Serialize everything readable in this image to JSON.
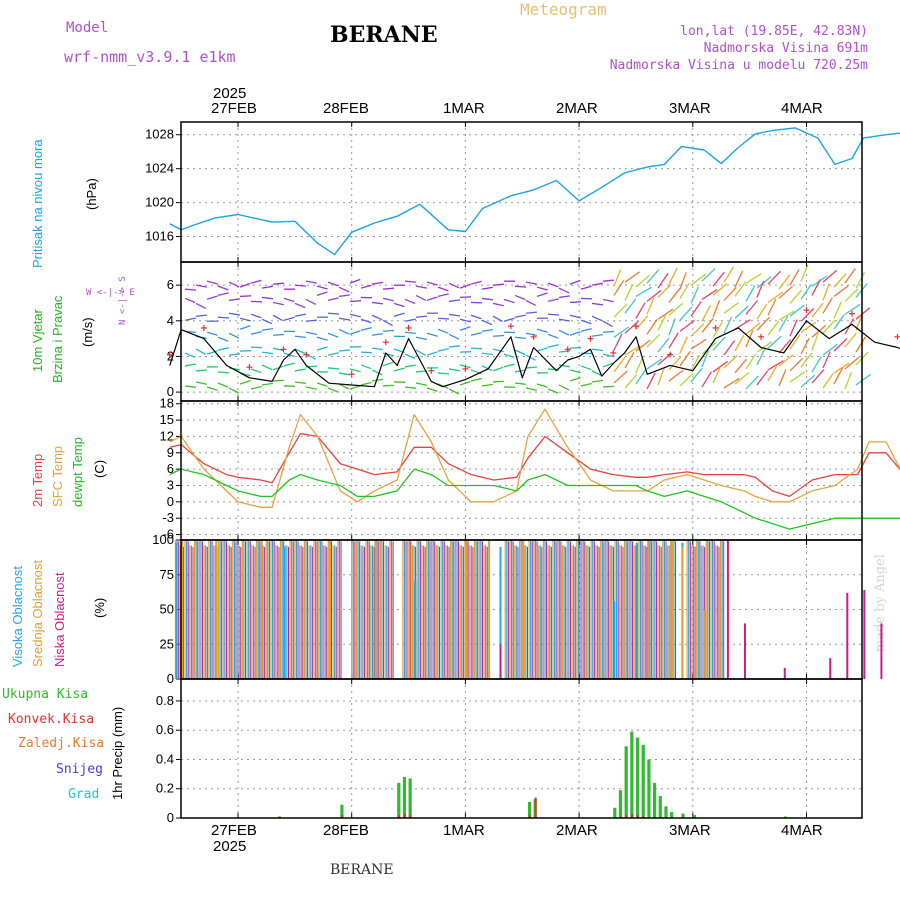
{
  "header": {
    "model_label": "Model",
    "model_name": "wrf-nmm_v3.9.1 e1km",
    "station": "BERANE",
    "title": "Meteogram",
    "coords": "lon,lat (19.85E, 42.83N)",
    "elevation": "Nadmorska Visina 691m",
    "model_elevation": "Nadmorska Visina u modelu 720.25m",
    "watermark": "made by Angel",
    "footer_station": "BERANE"
  },
  "colors": {
    "pressure": "#1aa3e8",
    "temp2m": "#e8413c",
    "sfc_temp": "#e6a33e",
    "dewpt": "#1fc41f",
    "wind_speed": "#000000",
    "cloud_high": "#22a7e6",
    "cloud_mid": "#e0a030",
    "cloud_low": "#c81c8c",
    "precip_total": "#33b833",
    "precip_conv": "#e83030",
    "precip_frz": "#f07830",
    "snow": "#4040e0",
    "hail": "#20c8c8"
  },
  "top_axis": {
    "year": "2025",
    "dates": [
      "27FEB",
      "28FEB",
      "1MAR",
      "2MAR",
      "3MAR",
      "4MAR"
    ]
  },
  "bottom_axis": {
    "year": "2025",
    "dates": [
      "27FEB",
      "28FEB",
      "1MAR",
      "2MAR",
      "3MAR",
      "4MAR"
    ]
  },
  "panels": {
    "pressure": {
      "ylabel": "Pritisak na nivou mora",
      "unit": "(hPa)"
    },
    "wind": {
      "ylabel1": "10m Vjetar",
      "ylabel2": "Brzina i Pravac",
      "unit": "(m/s)",
      "compass": "W <-|-> E",
      "compass_v": "N <-|-> S"
    },
    "temp": {
      "label1": "2m Temp",
      "label2": "SFC Temp",
      "label3": "dewpt Temp",
      "unit": "(C)"
    },
    "cloud": {
      "label1": "Visoka Oblacnost",
      "label2": "Srednja Oblacnost",
      "label3": "Niska Oblacnost",
      "unit": "(%)"
    },
    "precip": {
      "legend": [
        "Ukupna Kisa",
        "Konvek.Kisa",
        "Zaledj.Kisa",
        "Snijeg",
        "Grad"
      ],
      "ylabel": "1hr Precip (mm)"
    }
  },
  "chart_data": [
    {
      "type": "line",
      "name": "pressure",
      "x": [
        -0.6,
        -0.5,
        -0.4,
        -0.2,
        0,
        0.2,
        0.3,
        0.5,
        0.7,
        0.85,
        1,
        1.2,
        1.4,
        1.6,
        1.85,
        2,
        2.15,
        2.4,
        2.6,
        2.8,
        3,
        3.2,
        3.4,
        3.6,
        3.75,
        3.9,
        4.1,
        4.25,
        4.4,
        4.55,
        4.7,
        4.9,
        5.1,
        5.25,
        5.4,
        5.5,
        5.7,
        5.9,
        6.1,
        6.3,
        6.4
      ],
      "y": [
        1017.5,
        1016.8,
        1017.3,
        1018.2,
        1018.6,
        1018.0,
        1017.7,
        1017.8,
        1015.2,
        1013.9,
        1016.5,
        1017.6,
        1018.4,
        1019.8,
        1016.8,
        1016.6,
        1019.3,
        1020.8,
        1021.5,
        1022.6,
        1020.2,
        1021.8,
        1023.5,
        1024.2,
        1024.5,
        1026.6,
        1026.2,
        1024.6,
        1026.5,
        1028.1,
        1028.5,
        1028.8,
        1027.6,
        1024.5,
        1025.2,
        1027.6,
        1028.0,
        1028.3,
        1027.9,
        1028.0,
        1024.6
      ],
      "ylim": [
        1013,
        1029.5
      ],
      "yticks": [
        1016,
        1020,
        1024,
        1028
      ]
    },
    {
      "type": "line",
      "name": "wind_speed",
      "x": [
        -0.6,
        -0.5,
        -0.3,
        -0.1,
        0.1,
        0.3,
        0.4,
        0.5,
        0.6,
        0.8,
        1,
        1.2,
        1.3,
        1.4,
        1.5,
        1.6,
        1.7,
        1.8,
        2,
        2.2,
        2.4,
        2.5,
        2.6,
        2.8,
        2.9,
        3,
        3.1,
        3.2,
        3.3,
        3.4,
        3.5,
        3.6,
        3.8,
        4,
        4.2,
        4.4,
        4.6,
        4.8,
        5,
        5.2,
        5.4,
        5.6,
        5.8,
        6,
        6.2,
        6.4
      ],
      "y": [
        1.5,
        3.5,
        3.0,
        1.5,
        0.8,
        0.6,
        1.8,
        2.4,
        1.5,
        0.5,
        0.4,
        0.3,
        2.2,
        1.5,
        3.0,
        1.8,
        0.6,
        0.3,
        0.7,
        1.3,
        3.1,
        0.8,
        2.5,
        1.2,
        1.8,
        2.0,
        2.4,
        0.9,
        1.6,
        2.2,
        3.1,
        1.0,
        1.5,
        1.2,
        3.0,
        3.6,
        2.5,
        2.2,
        4.0,
        3.0,
        3.8,
        2.8,
        2.5,
        2.0,
        2.3,
        3.8
      ],
      "ylim": [
        -0.5,
        7.3
      ],
      "yticks": [
        0,
        2,
        4,
        6
      ]
    },
    {
      "type": "line",
      "name": "temperature",
      "x": [
        -0.6,
        -0.5,
        -0.3,
        -0.1,
        0,
        0.2,
        0.3,
        0.45,
        0.55,
        0.7,
        0.9,
        1.05,
        1.2,
        1.4,
        1.55,
        1.7,
        1.85,
        2.05,
        2.25,
        2.45,
        2.55,
        2.7,
        2.9,
        3.1,
        3.3,
        3.5,
        3.6,
        3.75,
        3.95,
        4.1,
        4.25,
        4.45,
        4.55,
        4.7,
        4.85,
        5.05,
        5.25,
        5.45,
        5.55,
        5.7,
        5.9,
        6.1,
        6.25,
        6.4
      ],
      "series": [
        {
          "name": "2m Temp",
          "values": [
            10,
            10.5,
            7,
            5,
            4.5,
            4,
            3.5,
            9,
            12.5,
            12,
            7,
            6,
            5,
            5.5,
            10,
            10,
            7,
            5,
            4,
            4.5,
            8,
            12,
            9,
            6,
            5,
            4.5,
            4.5,
            5,
            5.5,
            5,
            5,
            5,
            4.5,
            2,
            1,
            4,
            5,
            5,
            9,
            9,
            4,
            1,
            0,
            4
          ]
        },
        {
          "name": "SFC Temp",
          "values": [
            11,
            12,
            6,
            2,
            0,
            -1,
            -1,
            10,
            16,
            12,
            2,
            0,
            2,
            4,
            16,
            11,
            4,
            0,
            0,
            2,
            12,
            17,
            10,
            4,
            2,
            2,
            2,
            4,
            5,
            4,
            3,
            2,
            1,
            0,
            0,
            2,
            3,
            6,
            11,
            11,
            3,
            0,
            -1,
            12
          ]
        },
        {
          "name": "dewpt Temp",
          "values": [
            5,
            6,
            5,
            3,
            2,
            1,
            1,
            4,
            5,
            4,
            3,
            1,
            1,
            2,
            6,
            5,
            3,
            3,
            3,
            2,
            4,
            5,
            3,
            3,
            3,
            3,
            2,
            1,
            2,
            1,
            0,
            -2,
            -3,
            -4,
            -5,
            -4,
            -3,
            -3,
            -3,
            -3,
            -3,
            -3,
            -3,
            -3
          ]
        }
      ],
      "ylim": [
        -7,
        18.5
      ],
      "yticks": [
        -6,
        -3,
        0,
        3,
        6,
        9,
        12,
        15,
        18
      ]
    },
    {
      "type": "bar",
      "name": "cloud_cover",
      "series": [
        {
          "name": "Visoka Oblacnost",
          "x": [
            -0.55,
            -0.2,
            0.4,
            1.55,
            2.3,
            3.3,
            3.5,
            3.6,
            3.9
          ],
          "values": [
            98,
            95,
            95,
            70,
            95,
            56,
            98,
            98,
            98
          ]
        },
        {
          "name": "Srednja Oblacnost",
          "x": [
            -0.5,
            -0.2,
            0.2,
            0.8,
            1.2,
            1.5,
            2.0,
            2.2,
            2.5,
            3.6,
            3.8,
            3.9,
            4.1
          ],
          "values": [
            100,
            100,
            100,
            100,
            100,
            100,
            100,
            100,
            100,
            100,
            100,
            95,
            50
          ]
        },
        {
          "name": "Niska Oblacnost",
          "x": [
            2.3,
            4.3,
            4.45,
            4.8,
            5.2,
            5.35,
            5.5,
            5.65,
            5.95,
            6.2,
            6.4
          ],
          "values": [
            25,
            100,
            40,
            8,
            15,
            62,
            64,
            40,
            36,
            45,
            10
          ]
        }
      ],
      "ylim": [
        0,
        100
      ],
      "yticks": [
        0,
        25,
        50,
        75,
        100
      ]
    },
    {
      "type": "bar",
      "name": "precipitation",
      "x": [
        0.35,
        0.9,
        1.4,
        1.45,
        1.5,
        2.55,
        2.6,
        3.3,
        3.35,
        3.4,
        3.45,
        3.5,
        3.55,
        3.6,
        3.65,
        3.7,
        3.75,
        3.8,
        3.9,
        4.0,
        4.8
      ],
      "series": [
        {
          "name": "Ukupna Kisa",
          "values": [
            0.01,
            0.09,
            0.24,
            0.28,
            0.27,
            0.11,
            0.13,
            0.07,
            0.19,
            0.49,
            0.59,
            0.55,
            0.5,
            0.4,
            0.24,
            0.15,
            0.08,
            0.04,
            0.03,
            0.02,
            0.01
          ]
        },
        {
          "name": "Konvek.Kisa",
          "values": [
            0.01,
            0.02,
            0.02,
            0.03,
            0.02,
            0.02,
            0.14,
            0.0,
            0.01,
            0.02,
            0.03,
            0.02,
            0.01,
            0.0,
            0.0,
            0.0,
            0.0,
            0.0,
            0.0,
            0.0,
            0.0
          ]
        }
      ],
      "ylim": [
        0,
        0.95
      ],
      "yticks": [
        0,
        0.2,
        0.4,
        0.6,
        0.8
      ]
    }
  ]
}
